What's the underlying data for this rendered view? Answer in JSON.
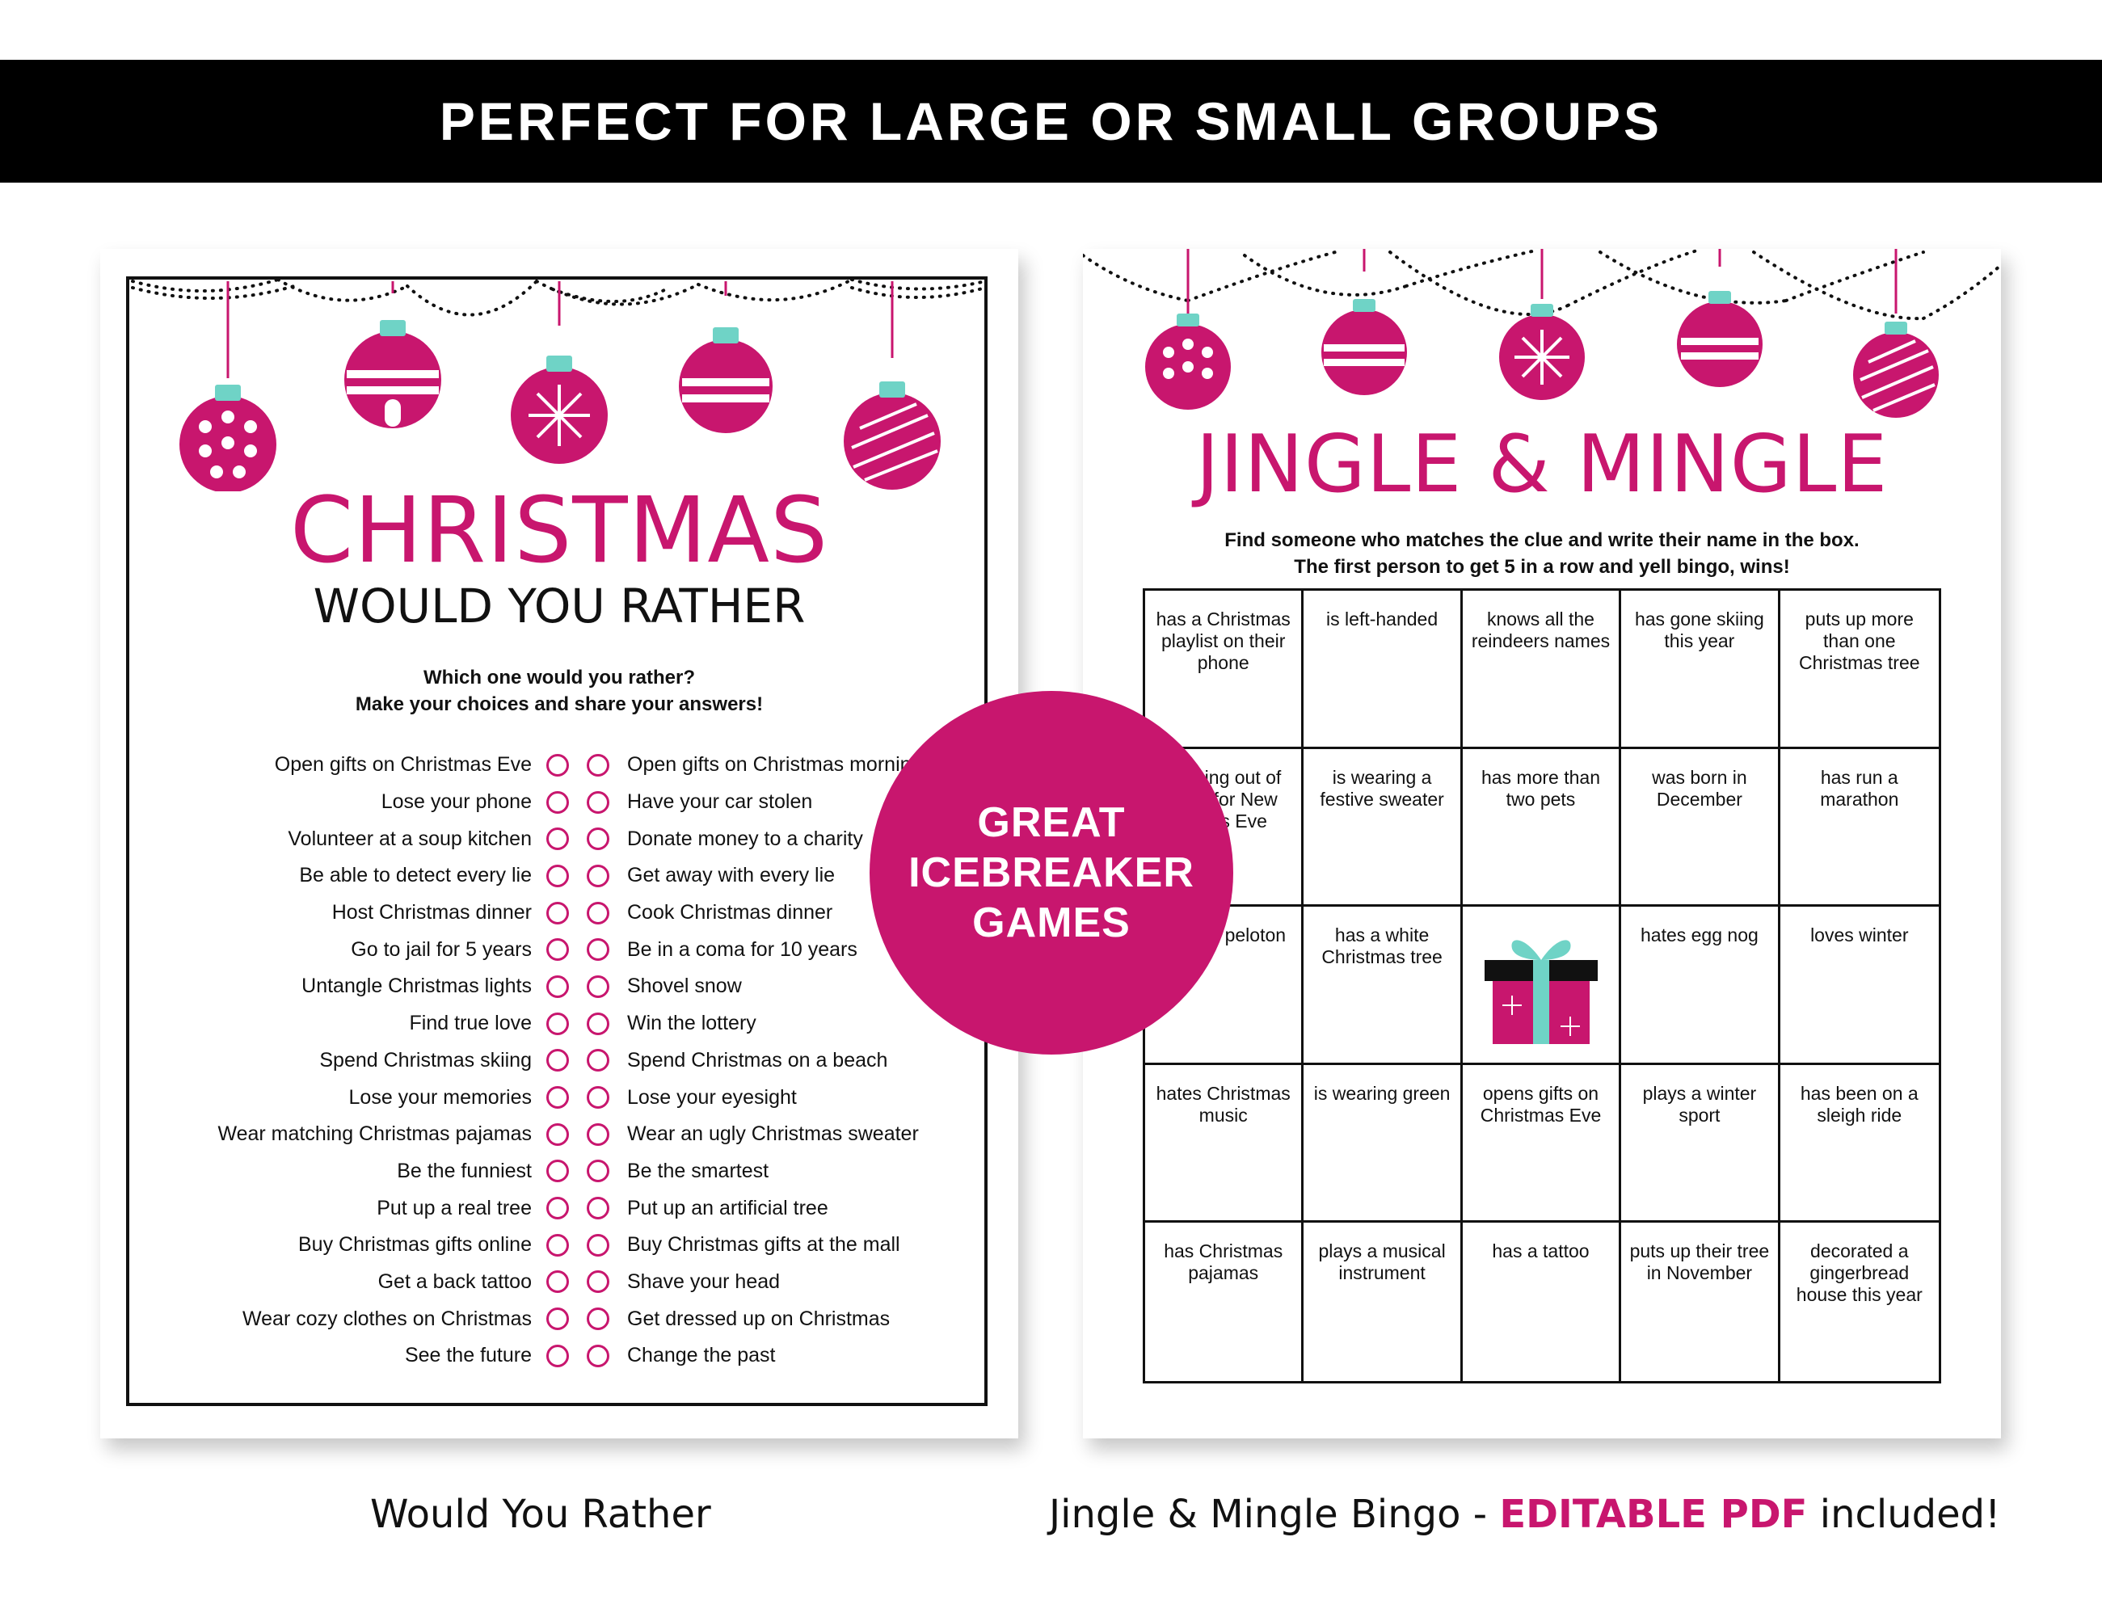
{
  "banner": {
    "text": "PERFECT FOR LARGE OR SMALL GROUPS"
  },
  "badge": {
    "lines": [
      "GREAT",
      "ICEBREAKER",
      "GAMES"
    ]
  },
  "would_you_rather": {
    "title": "CHRISTMAS",
    "subtitle": "WOULD YOU RATHER",
    "instructions": [
      "Which one would you rather?",
      "Make your choices and share your answers!"
    ],
    "rows": [
      {
        "left": "Open gifts on Christmas Eve",
        "right": "Open gifts on Christmas morning"
      },
      {
        "left": "Lose your phone",
        "right": "Have your car stolen"
      },
      {
        "left": "Volunteer at a soup kitchen",
        "right": "Donate money to a charity"
      },
      {
        "left": "Be able to detect every lie",
        "right": "Get away with every lie"
      },
      {
        "left": "Host Christmas dinner",
        "right": "Cook Christmas dinner"
      },
      {
        "left": "Go to jail for 5 years",
        "right": "Be in a coma for 10 years"
      },
      {
        "left": "Untangle Christmas lights",
        "right": "Shovel snow"
      },
      {
        "left": "Find true love",
        "right": "Win the lottery"
      },
      {
        "left": "Spend Christmas skiing",
        "right": "Spend Christmas on a beach"
      },
      {
        "left": "Lose your memories",
        "right": "Lose your eyesight"
      },
      {
        "left": "Wear matching Christmas pajamas",
        "right": "Wear an ugly Christmas sweater"
      },
      {
        "left": "Be the funniest",
        "right": "Be the smartest"
      },
      {
        "left": "Put up a real tree",
        "right": "Put up an artificial tree"
      },
      {
        "left": "Buy Christmas gifts online",
        "right": "Buy Christmas gifts at the mall"
      },
      {
        "left": "Get a back tattoo",
        "right": "Shave your head"
      },
      {
        "left": "Wear cozy clothes on Christmas",
        "right": "Get dressed up on Christmas"
      },
      {
        "left": "See the future",
        "right": "Change the past"
      }
    ]
  },
  "jingle_mingle": {
    "title": "JINGLE & MINGLE",
    "instructions": [
      "Find someone who matches the clue and write their name in the box.",
      "The first person to get 5 in a row and yell bingo, wins!"
    ],
    "cells": [
      "has a Christmas playlist on their phone",
      "is left-handed",
      "knows all the reindeers names",
      "has gone skiing this year",
      "puts up more than one Christmas tree",
      "is going out of town for New Year's Eve",
      "is wearing a festive sweater",
      "has more than two pets",
      "was born in December",
      "has run a marathon",
      "owns a peloton",
      "has a white Christmas tree",
      "",
      "hates egg nog",
      "loves winter",
      "hates Christmas music",
      "is wearing green",
      "opens gifts on Christmas Eve",
      "plays a winter sport",
      "has been on a sleigh ride",
      "has Christmas pajamas",
      "plays a musical instrument",
      "has a tattoo",
      "puts up their tree in November",
      "decorated a gingerbread house this year"
    ],
    "free_space_icon": "gift-icon"
  },
  "captions": {
    "left": "Would You Rather",
    "right_prefix": "Jingle & Mingle Bingo - ",
    "right_accent": "EDITABLE PDF",
    "right_suffix": " included!"
  },
  "colors": {
    "accent": "#c8166e",
    "teal": "#6fd3c6",
    "black": "#000000"
  }
}
